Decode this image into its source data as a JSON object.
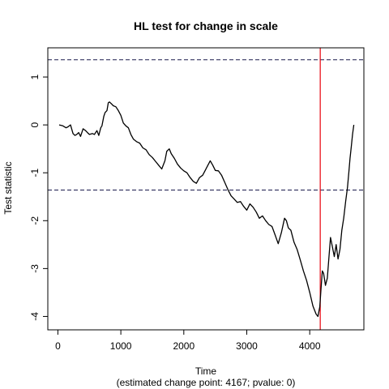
{
  "chart_data": {
    "type": "line",
    "title": "HL test for change in scale",
    "xlabel": "Time",
    "xsub": "(estimated change point: 4167; pvalue: 0)",
    "ylabel": "Test statistic",
    "xlim": [
      -160,
      4860
    ],
    "ylim": [
      -4.28,
      1.61
    ],
    "xticks": [
      0,
      1000,
      2000,
      3000,
      4000
    ],
    "xtick_labels": [
      "0",
      "1000",
      "2000",
      "3000",
      "4000"
    ],
    "yticks": [
      -4,
      -3,
      -2,
      -1,
      0,
      1
    ],
    "ytick_labels": [
      "-4",
      "-3",
      "-2",
      "-1",
      "0",
      "1"
    ],
    "hlines": [
      1.36,
      -1.36
    ],
    "vline": 4167,
    "colors": {
      "line": "#000000",
      "hline": "#1a1a4d",
      "vline": "#e8000b"
    },
    "series": [
      {
        "x": [
          20,
          80,
          130,
          160,
          200,
          240,
          270,
          300,
          330,
          360,
          400,
          440,
          470,
          500,
          550,
          580,
          620,
          650,
          680,
          700,
          730,
          750,
          780,
          800,
          820,
          850,
          880,
          920,
          960,
          1000,
          1040,
          1080,
          1120,
          1160,
          1200,
          1250,
          1300,
          1350,
          1400,
          1450,
          1500,
          1550,
          1600,
          1650,
          1700,
          1730,
          1770,
          1800,
          1850,
          1900,
          1950,
          2000,
          2050,
          2100,
          2150,
          2200,
          2250,
          2300,
          2340,
          2380,
          2420,
          2460,
          2500,
          2550,
          2600,
          2650,
          2700,
          2750,
          2800,
          2850,
          2900,
          2950,
          3000,
          3050,
          3100,
          3150,
          3200,
          3250,
          3300,
          3350,
          3400,
          3450,
          3500,
          3550,
          3600,
          3630,
          3660,
          3700,
          3750,
          3800,
          3850,
          3900,
          3950,
          4000,
          4050,
          4100,
          4130,
          4160,
          4170,
          4180,
          4200,
          4220,
          4250,
          4280,
          4300,
          4330,
          4360,
          4390,
          4420,
          4450,
          4480,
          4510,
          4540,
          4570,
          4600,
          4620,
          4640,
          4660,
          4680,
          4700
        ],
        "y": [
          0.0,
          -0.02,
          -0.06,
          -0.04,
          0.0,
          -0.18,
          -0.22,
          -0.2,
          -0.16,
          -0.24,
          -0.08,
          -0.12,
          -0.16,
          -0.2,
          -0.18,
          -0.2,
          -0.12,
          -0.22,
          -0.06,
          -0.02,
          0.18,
          0.26,
          0.3,
          0.46,
          0.48,
          0.44,
          0.4,
          0.38,
          0.3,
          0.2,
          0.04,
          -0.02,
          -0.06,
          -0.2,
          -0.3,
          -0.35,
          -0.38,
          -0.48,
          -0.52,
          -0.62,
          -0.68,
          -0.76,
          -0.84,
          -0.92,
          -0.75,
          -0.55,
          -0.5,
          -0.6,
          -0.7,
          -0.82,
          -0.9,
          -0.96,
          -1.0,
          -1.1,
          -1.18,
          -1.22,
          -1.1,
          -1.05,
          -0.95,
          -0.85,
          -0.75,
          -0.84,
          -0.95,
          -0.96,
          -1.05,
          -1.2,
          -1.35,
          -1.48,
          -1.55,
          -1.62,
          -1.6,
          -1.7,
          -1.78,
          -1.65,
          -1.72,
          -1.82,
          -1.95,
          -1.9,
          -2.0,
          -2.08,
          -2.12,
          -2.3,
          -2.48,
          -2.25,
          -1.95,
          -2.0,
          -2.15,
          -2.2,
          -2.45,
          -2.6,
          -2.82,
          -3.05,
          -3.25,
          -3.5,
          -3.78,
          -3.95,
          -4.0,
          -3.8,
          -3.6,
          -3.4,
          -3.05,
          -3.1,
          -3.35,
          -3.2,
          -2.85,
          -2.35,
          -2.55,
          -2.75,
          -2.5,
          -2.8,
          -2.6,
          -2.2,
          -1.95,
          -1.6,
          -1.3,
          -1.0,
          -0.7,
          -0.45,
          -0.2,
          0.0
        ]
      }
    ]
  }
}
